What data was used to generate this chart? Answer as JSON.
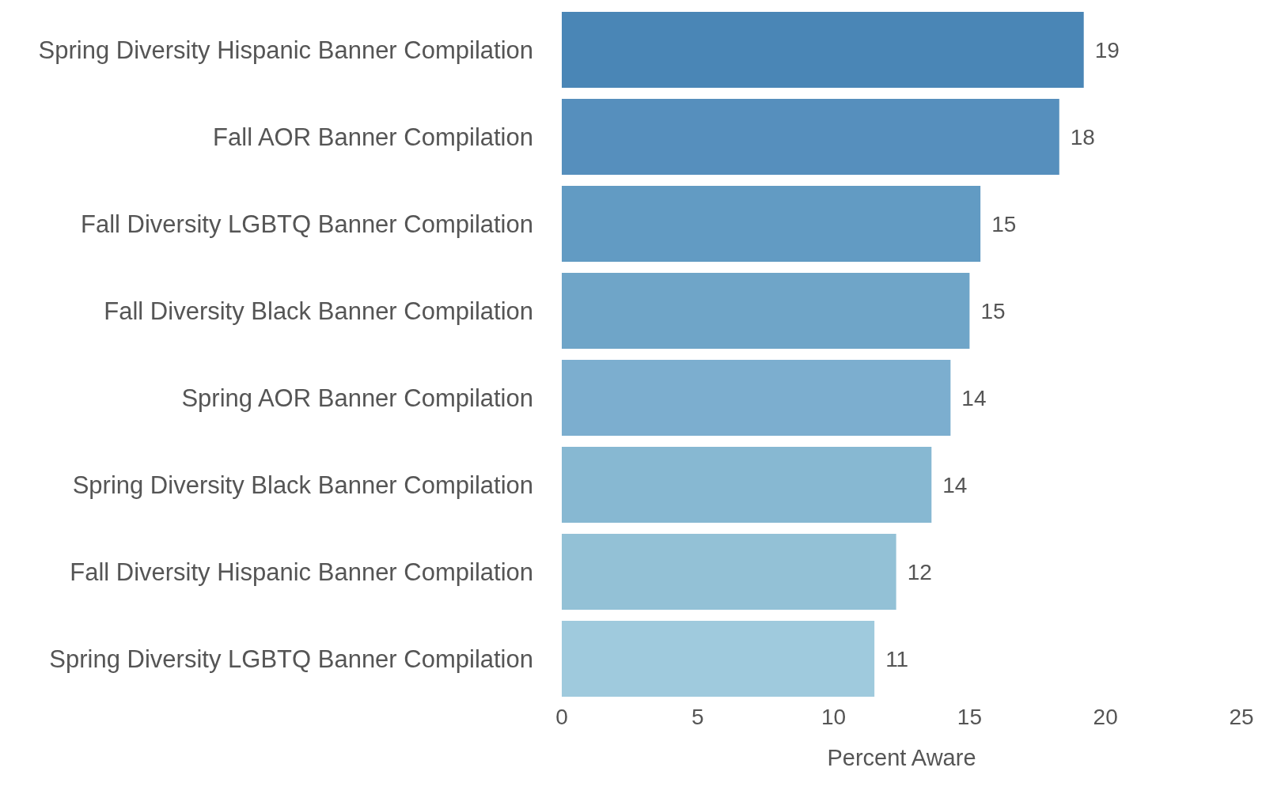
{
  "chart_data": {
    "type": "bar",
    "orientation": "horizontal",
    "xlabel": "Percent Aware",
    "categories": [
      "Spring Diversity Hispanic Banner Compilation",
      "Fall AOR Banner Compilation",
      "Fall Diversity LGBTQ Banner Compilation",
      "Fall Diversity Black Banner Compilation",
      "Spring AOR Banner Compilation",
      "Spring Diversity Black Banner Compilation",
      "Fall Diversity Hispanic Banner Compilation",
      "Spring Diversity LGBTQ Banner Compilation"
    ],
    "values": [
      19.2,
      18.3,
      15.4,
      15.0,
      14.3,
      13.6,
      12.3,
      11.5
    ],
    "value_labels": [
      "19",
      "18",
      "15",
      "15",
      "14",
      "14",
      "12",
      "11"
    ],
    "colors": [
      "#4a86b6",
      "#568fbd",
      "#629bc3",
      "#6fa5c8",
      "#7caecf",
      "#87b8d2",
      "#93c1d6",
      "#9fcadd"
    ],
    "xlim": [
      0,
      25
    ],
    "xticks": [
      0,
      5,
      10,
      15,
      20,
      25
    ],
    "grid": false,
    "legend": false
  }
}
